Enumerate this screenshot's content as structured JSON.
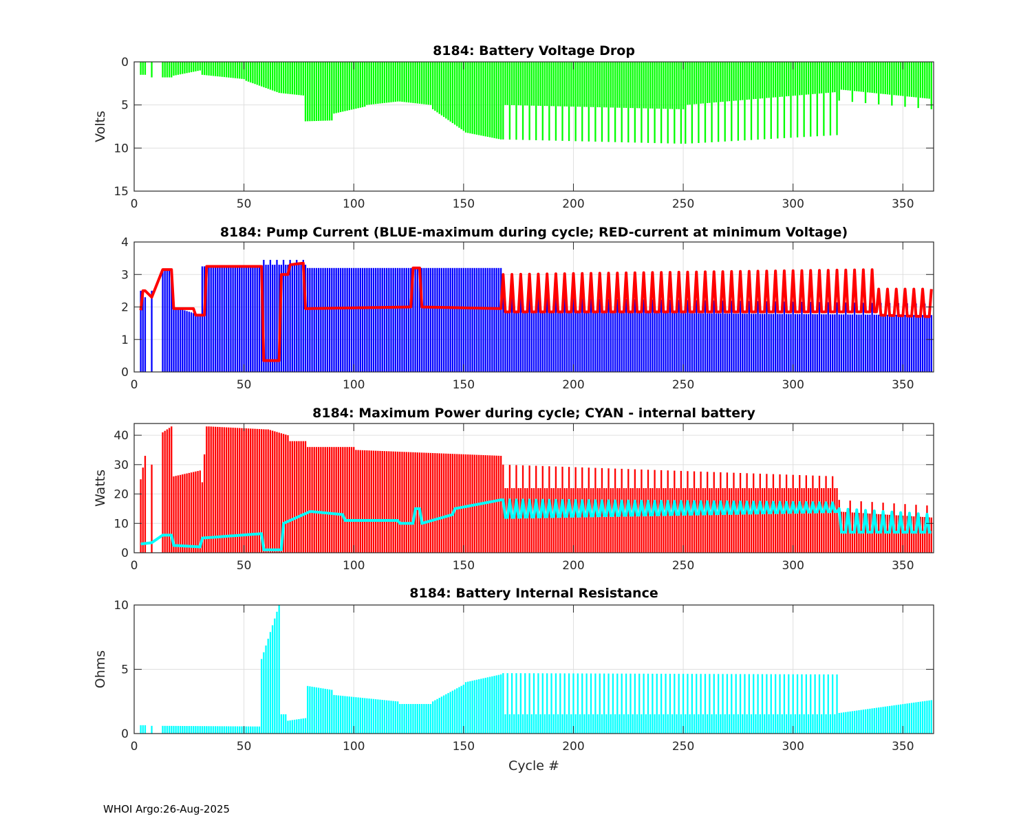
{
  "footer": "WHOI Argo:26-Aug-2025",
  "chart_data": [
    {
      "type": "bar",
      "title": "8184: Battery Voltage Drop",
      "xlabel": "",
      "ylabel": "Volts",
      "xlim": [
        0,
        364
      ],
      "ylim": [
        0,
        15
      ],
      "y_reversed": true,
      "grid": true,
      "xticks": [
        "0",
        "50",
        "100",
        "150",
        "200",
        "250",
        "300",
        "350"
      ],
      "yticks": [
        "0",
        "5",
        "10",
        "15"
      ],
      "missing_cycles": [
        1,
        2,
        6,
        7,
        9,
        10,
        11,
        12
      ],
      "series": [
        {
          "name": "Voltage drop",
          "kind": "bar",
          "color": "#00ff00",
          "segments": [
            {
              "from": 3,
              "to": 5,
              "base": [
                1.5,
                1.5
              ]
            },
            {
              "from": 8,
              "to": 8,
              "base": [
                1.8,
                1.8
              ]
            },
            {
              "from": 13,
              "to": 17,
              "base": [
                1.8,
                1.8
              ]
            },
            {
              "from": 18,
              "to": 30,
              "base": [
                1.6,
                1.0
              ]
            },
            {
              "from": 31,
              "to": 50,
              "base": [
                1.5,
                2.0
              ]
            },
            {
              "from": 51,
              "to": 65,
              "base": [
                2.2,
                3.5
              ]
            },
            {
              "from": 66,
              "to": 77,
              "base": [
                3.6,
                3.9
              ]
            },
            {
              "from": 78,
              "to": 90,
              "base": [
                6.9,
                6.8
              ]
            },
            {
              "from": 91,
              "to": 105,
              "base": [
                6.0,
                5.2
              ]
            },
            {
              "from": 106,
              "to": 120,
              "base": [
                5.0,
                4.6
              ]
            },
            {
              "from": 121,
              "to": 135,
              "base": [
                4.6,
                5.0
              ]
            },
            {
              "from": 136,
              "to": 150,
              "base": [
                5.5,
                8.0
              ]
            },
            {
              "from": 151,
              "to": 167,
              "base": [
                8.2,
                9.0
              ]
            },
            {
              "from": 168,
              "to": 250,
              "base": [
                5.0,
                5.5
              ],
              "peak": [
                9.0,
                9.5
              ],
              "every": 3
            },
            {
              "from": 251,
              "to": 320,
              "base": [
                5.0,
                3.5
              ],
              "peak": [
                9.5,
                8.5
              ],
              "every": 3
            },
            {
              "from": 321,
              "to": 363,
              "base": [
                3.2,
                4.3
              ],
              "peak": [
                4.5,
                5.5
              ],
              "every": 6
            }
          ]
        }
      ]
    },
    {
      "type": "bar",
      "title": "8184: Pump Current (BLUE-maximum during cycle; RED-current at minimum Voltage)",
      "xlabel": "",
      "ylabel": "",
      "xlim": [
        0,
        364
      ],
      "ylim": [
        0,
        4
      ],
      "grid": true,
      "xticks": [
        "0",
        "50",
        "100",
        "150",
        "200",
        "250",
        "300",
        "350"
      ],
      "yticks": [
        "0",
        "1",
        "2",
        "3",
        "4"
      ],
      "missing_cycles": [
        1,
        2,
        6,
        7,
        9,
        10,
        11,
        12
      ],
      "series": [
        {
          "name": "maximum during cycle",
          "kind": "bar",
          "color": "#0000ff",
          "segments": [
            {
              "from": 3,
              "to": 5,
              "base": [
                2.5,
                2.3
              ]
            },
            {
              "from": 8,
              "to": 8,
              "base": [
                2.5,
                2.5
              ]
            },
            {
              "from": 13,
              "to": 17,
              "base": [
                3.15,
                3.15
              ]
            },
            {
              "from": 18,
              "to": 30,
              "base": [
                2.0,
                1.75
              ]
            },
            {
              "from": 31,
              "to": 58,
              "base": [
                3.25,
                3.25
              ]
            },
            {
              "from": 59,
              "to": 78,
              "base": [
                3.3,
                3.3
              ],
              "peak": [
                3.45,
                3.45
              ],
              "every": 3
            },
            {
              "from": 79,
              "to": 167,
              "base": [
                3.2,
                3.2
              ]
            },
            {
              "from": 168,
              "to": 363,
              "base": [
                1.85,
                1.75
              ],
              "peak": [
                2.3,
                2.1
              ],
              "every": 4
            }
          ]
        },
        {
          "name": "current at minimum Voltage",
          "kind": "line",
          "color": "#ff0000",
          "segments": [
            {
              "from": 3,
              "to": 4,
              "base": [
                1.9,
                2.5
              ]
            },
            {
              "from": 5,
              "to": 8,
              "base": [
                2.5,
                2.3
              ]
            },
            {
              "from": 9,
              "to": 17,
              "base": [
                3.15,
                3.15
              ]
            },
            {
              "from": 18,
              "to": 27,
              "base": [
                1.95,
                1.95
              ]
            },
            {
              "from": 28,
              "to": 32,
              "base": [
                1.75,
                1.75
              ]
            },
            {
              "from": 33,
              "to": 58,
              "base": [
                3.25,
                3.25
              ]
            },
            {
              "from": 59,
              "to": 66,
              "base": [
                0.35,
                0.35
              ]
            },
            {
              "from": 67,
              "to": 70,
              "base": [
                3.0,
                3.0
              ]
            },
            {
              "from": 71,
              "to": 77,
              "base": [
                3.3,
                3.35
              ]
            },
            {
              "from": 78,
              "to": 126,
              "base": [
                1.95,
                2.0
              ]
            },
            {
              "from": 127,
              "to": 130,
              "base": [
                3.2,
                3.2
              ]
            },
            {
              "from": 131,
              "to": 167,
              "base": [
                2.0,
                1.95
              ]
            },
            {
              "from": 168,
              "to": 338,
              "base": [
                1.85,
                1.85
              ],
              "peak": [
                3.0,
                3.15
              ],
              "every": 4
            },
            {
              "from": 339,
              "to": 363,
              "base": [
                1.75,
                1.7
              ],
              "peak": [
                2.55,
                2.55
              ],
              "every": 4
            }
          ]
        }
      ]
    },
    {
      "type": "bar",
      "title": "8184: Maximum Power during cycle; CYAN - internal battery",
      "xlabel": "",
      "ylabel": "Watts",
      "xlim": [
        0,
        364
      ],
      "ylim": [
        0,
        44
      ],
      "grid": true,
      "xticks": [
        "0",
        "50",
        "100",
        "150",
        "200",
        "250",
        "300",
        "350"
      ],
      "yticks": [
        "0",
        "10",
        "20",
        "30",
        "40"
      ],
      "missing_cycles": [
        1,
        2,
        6,
        7,
        9,
        10,
        11,
        12
      ],
      "series": [
        {
          "name": "Maximum power",
          "kind": "bar",
          "color": "#ff0000",
          "segments": [
            {
              "from": 3,
              "to": 5,
              "base": [
                25,
                33
              ]
            },
            {
              "from": 8,
              "to": 8,
              "base": [
                30,
                30
              ]
            },
            {
              "from": 13,
              "to": 17,
              "base": [
                41,
                43
              ]
            },
            {
              "from": 18,
              "to": 30,
              "base": [
                26,
                28
              ]
            },
            {
              "from": 31,
              "to": 33,
              "base": [
                24,
                43
              ]
            },
            {
              "from": 34,
              "to": 60,
              "base": [
                43,
                42
              ]
            },
            {
              "from": 61,
              "to": 70,
              "base": [
                42,
                40
              ]
            },
            {
              "from": 71,
              "to": 78,
              "base": [
                38,
                38
              ]
            },
            {
              "from": 79,
              "to": 100,
              "base": [
                36,
                36
              ]
            },
            {
              "from": 101,
              "to": 167,
              "base": [
                35,
                33
              ]
            },
            {
              "from": 168,
              "to": 320,
              "base": [
                22,
                22
              ],
              "peak": [
                30,
                26
              ],
              "every": 3
            },
            {
              "from": 321,
              "to": 363,
              "base": [
                14,
                12
              ],
              "peak": [
                18,
                16
              ],
              "every": 5
            }
          ]
        },
        {
          "name": "internal battery",
          "kind": "line",
          "color": "#00ffff",
          "segments": [
            {
              "from": 3,
              "to": 9,
              "base": [
                3,
                3.5
              ]
            },
            {
              "from": 10,
              "to": 17,
              "base": [
                6,
                6
              ]
            },
            {
              "from": 18,
              "to": 30,
              "base": [
                2.5,
                2
              ]
            },
            {
              "from": 31,
              "to": 58,
              "base": [
                5,
                6.5
              ]
            },
            {
              "from": 59,
              "to": 67,
              "base": [
                1,
                1
              ]
            },
            {
              "from": 68,
              "to": 80,
              "base": [
                10,
                14
              ]
            },
            {
              "from": 81,
              "to": 95,
              "base": [
                14,
                13
              ]
            },
            {
              "from": 96,
              "to": 120,
              "base": [
                11,
                11
              ]
            },
            {
              "from": 121,
              "to": 127,
              "base": [
                10,
                10
              ]
            },
            {
              "from": 128,
              "to": 130,
              "base": [
                15,
                15
              ]
            },
            {
              "from": 131,
              "to": 145,
              "base": [
                10,
                13
              ]
            },
            {
              "from": 146,
              "to": 167,
              "base": [
                15,
                18
              ]
            },
            {
              "from": 168,
              "to": 320,
              "base": [
                12,
                14
              ],
              "peak": [
                18,
                17
              ],
              "every": 3
            },
            {
              "from": 321,
              "to": 363,
              "base": [
                7,
                7
              ],
              "peak": [
                15,
                13
              ],
              "every": 4
            }
          ]
        }
      ]
    },
    {
      "type": "bar",
      "title": "8184: Battery Internal Resistance",
      "xlabel": "Cycle #",
      "ylabel": "Ohms",
      "xlim": [
        0,
        364
      ],
      "ylim": [
        0,
        10
      ],
      "grid": true,
      "xticks": [
        "0",
        "50",
        "100",
        "150",
        "200",
        "250",
        "300",
        "350"
      ],
      "yticks": [
        "0",
        "5",
        "10"
      ],
      "missing_cycles": [
        1,
        2,
        6,
        7,
        9,
        10,
        11,
        12
      ],
      "series": [
        {
          "name": "Internal resistance",
          "kind": "bar",
          "color": "#00ffff",
          "segments": [
            {
              "from": 3,
              "to": 5,
              "base": [
                0.65,
                0.65
              ]
            },
            {
              "from": 8,
              "to": 8,
              "base": [
                0.6,
                0.6
              ]
            },
            {
              "from": 13,
              "to": 57,
              "base": [
                0.6,
                0.55
              ]
            },
            {
              "from": 58,
              "to": 66,
              "base": [
                5.8,
                10
              ]
            },
            {
              "from": 67,
              "to": 69,
              "base": [
                1.5,
                1.5
              ]
            },
            {
              "from": 70,
              "to": 78,
              "base": [
                1.0,
                1.2
              ]
            },
            {
              "from": 79,
              "to": 90,
              "base": [
                3.7,
                3.4
              ]
            },
            {
              "from": 91,
              "to": 120,
              "base": [
                3.0,
                2.5
              ]
            },
            {
              "from": 121,
              "to": 135,
              "base": [
                2.3,
                2.3
              ]
            },
            {
              "from": 136,
              "to": 150,
              "base": [
                2.5,
                3.8
              ]
            },
            {
              "from": 151,
              "to": 167,
              "base": [
                4.0,
                4.6
              ]
            },
            {
              "from": 168,
              "to": 320,
              "base": [
                1.5,
                1.5
              ],
              "peak": [
                4.7,
                4.6
              ],
              "every": 2
            },
            {
              "from": 321,
              "to": 363,
              "base": [
                1.6,
                2.6
              ]
            }
          ]
        }
      ]
    }
  ]
}
